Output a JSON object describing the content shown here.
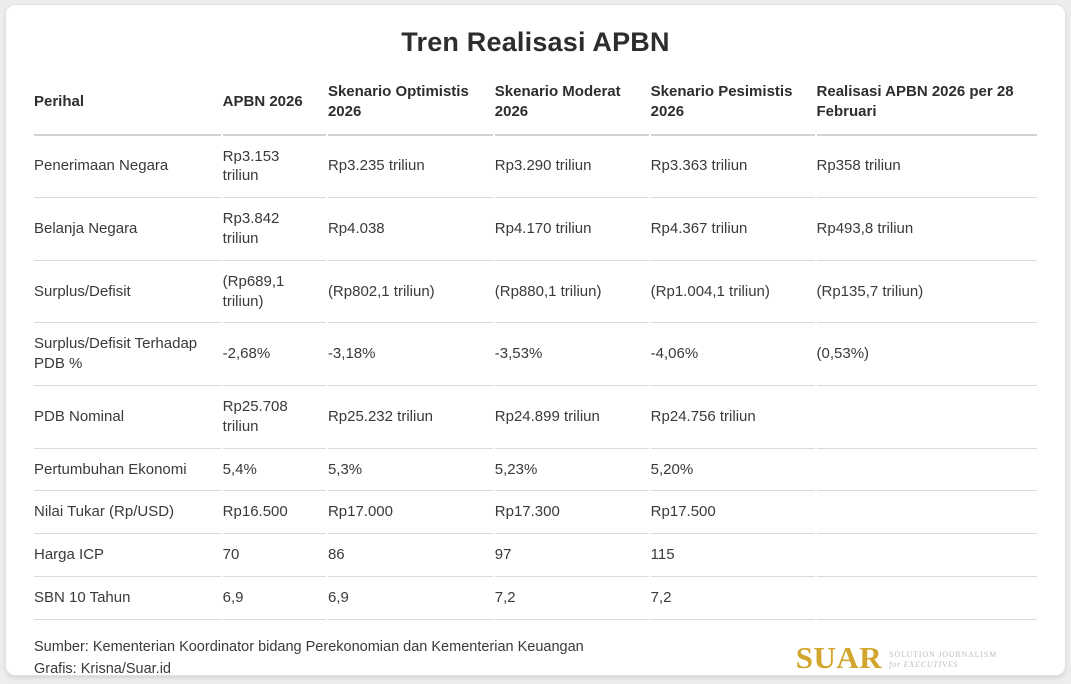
{
  "chart_data": {
    "type": "table",
    "title": "Tren Realisasi APBN",
    "columns": [
      "Perihal",
      "APBN 2026",
      "Skenario Optimistis 2026",
      "Skenario Moderat 2026",
      "Skenario Pesimistis 2026",
      "Realisasi APBN 2026 per 28 Februari"
    ],
    "rows": [
      {
        "label": "Penerimaan Negara",
        "values": [
          "Rp3.153 triliun",
          "Rp3.235 triliun",
          "Rp3.290 triliun",
          "Rp3.363 triliun",
          "Rp358 triliun"
        ]
      },
      {
        "label": "Belanja Negara",
        "values": [
          "Rp3.842 triliun",
          "Rp4.038",
          "Rp4.170 triliun",
          "Rp4.367 triliun",
          "Rp493,8 triliun"
        ]
      },
      {
        "label": "Surplus/Defisit",
        "values": [
          "(Rp689,1 triliun)",
          "(Rp802,1 triliun)",
          "(Rp880,1 triliun)",
          "(Rp1.004,1 triliun)",
          "(Rp135,7 triliun)"
        ]
      },
      {
        "label": "Surplus/Defisit Terhadap PDB %",
        "values": [
          "-2,68%",
          "-3,18%",
          "-3,53%",
          "-4,06%",
          "(0,53%)"
        ]
      },
      {
        "label": "PDB Nominal",
        "values": [
          "Rp25.708 triliun",
          "Rp25.232 triliun",
          "Rp24.899 triliun",
          "Rp24.756 triliun",
          ""
        ]
      },
      {
        "label": "Pertumbuhan Ekonomi",
        "values": [
          "5,4%",
          "5,3%",
          "5,23%",
          "5,20%",
          ""
        ]
      },
      {
        "label": "Nilai Tukar (Rp/USD)",
        "values": [
          "Rp16.500",
          "Rp17.000",
          "Rp17.300",
          "Rp17.500",
          ""
        ]
      },
      {
        "label": "Harga ICP",
        "values": [
          "70",
          "86",
          "97",
          "115",
          ""
        ]
      },
      {
        "label": "SBN 10 Tahun",
        "values": [
          "6,9",
          "6,9",
          "7,2",
          "7,2",
          ""
        ]
      }
    ]
  },
  "footer": {
    "source": "Sumber: Kementerian Koordinator bidang Perekonomian dan Kementerian Keuangan",
    "credit": "Grafis: Krisna/Suar.id"
  },
  "logo": {
    "wordmark": "SUAR",
    "tagline_line1": "SOLUTION JOURNALISM",
    "tagline_line2": "for EXECUTIVES"
  },
  "colors": {
    "brand_gold": "#d2a62c",
    "text_dark": "#2e2e2e",
    "divider": "#dadada",
    "page_bg": "#ededed",
    "card_bg": "#ffffff"
  }
}
